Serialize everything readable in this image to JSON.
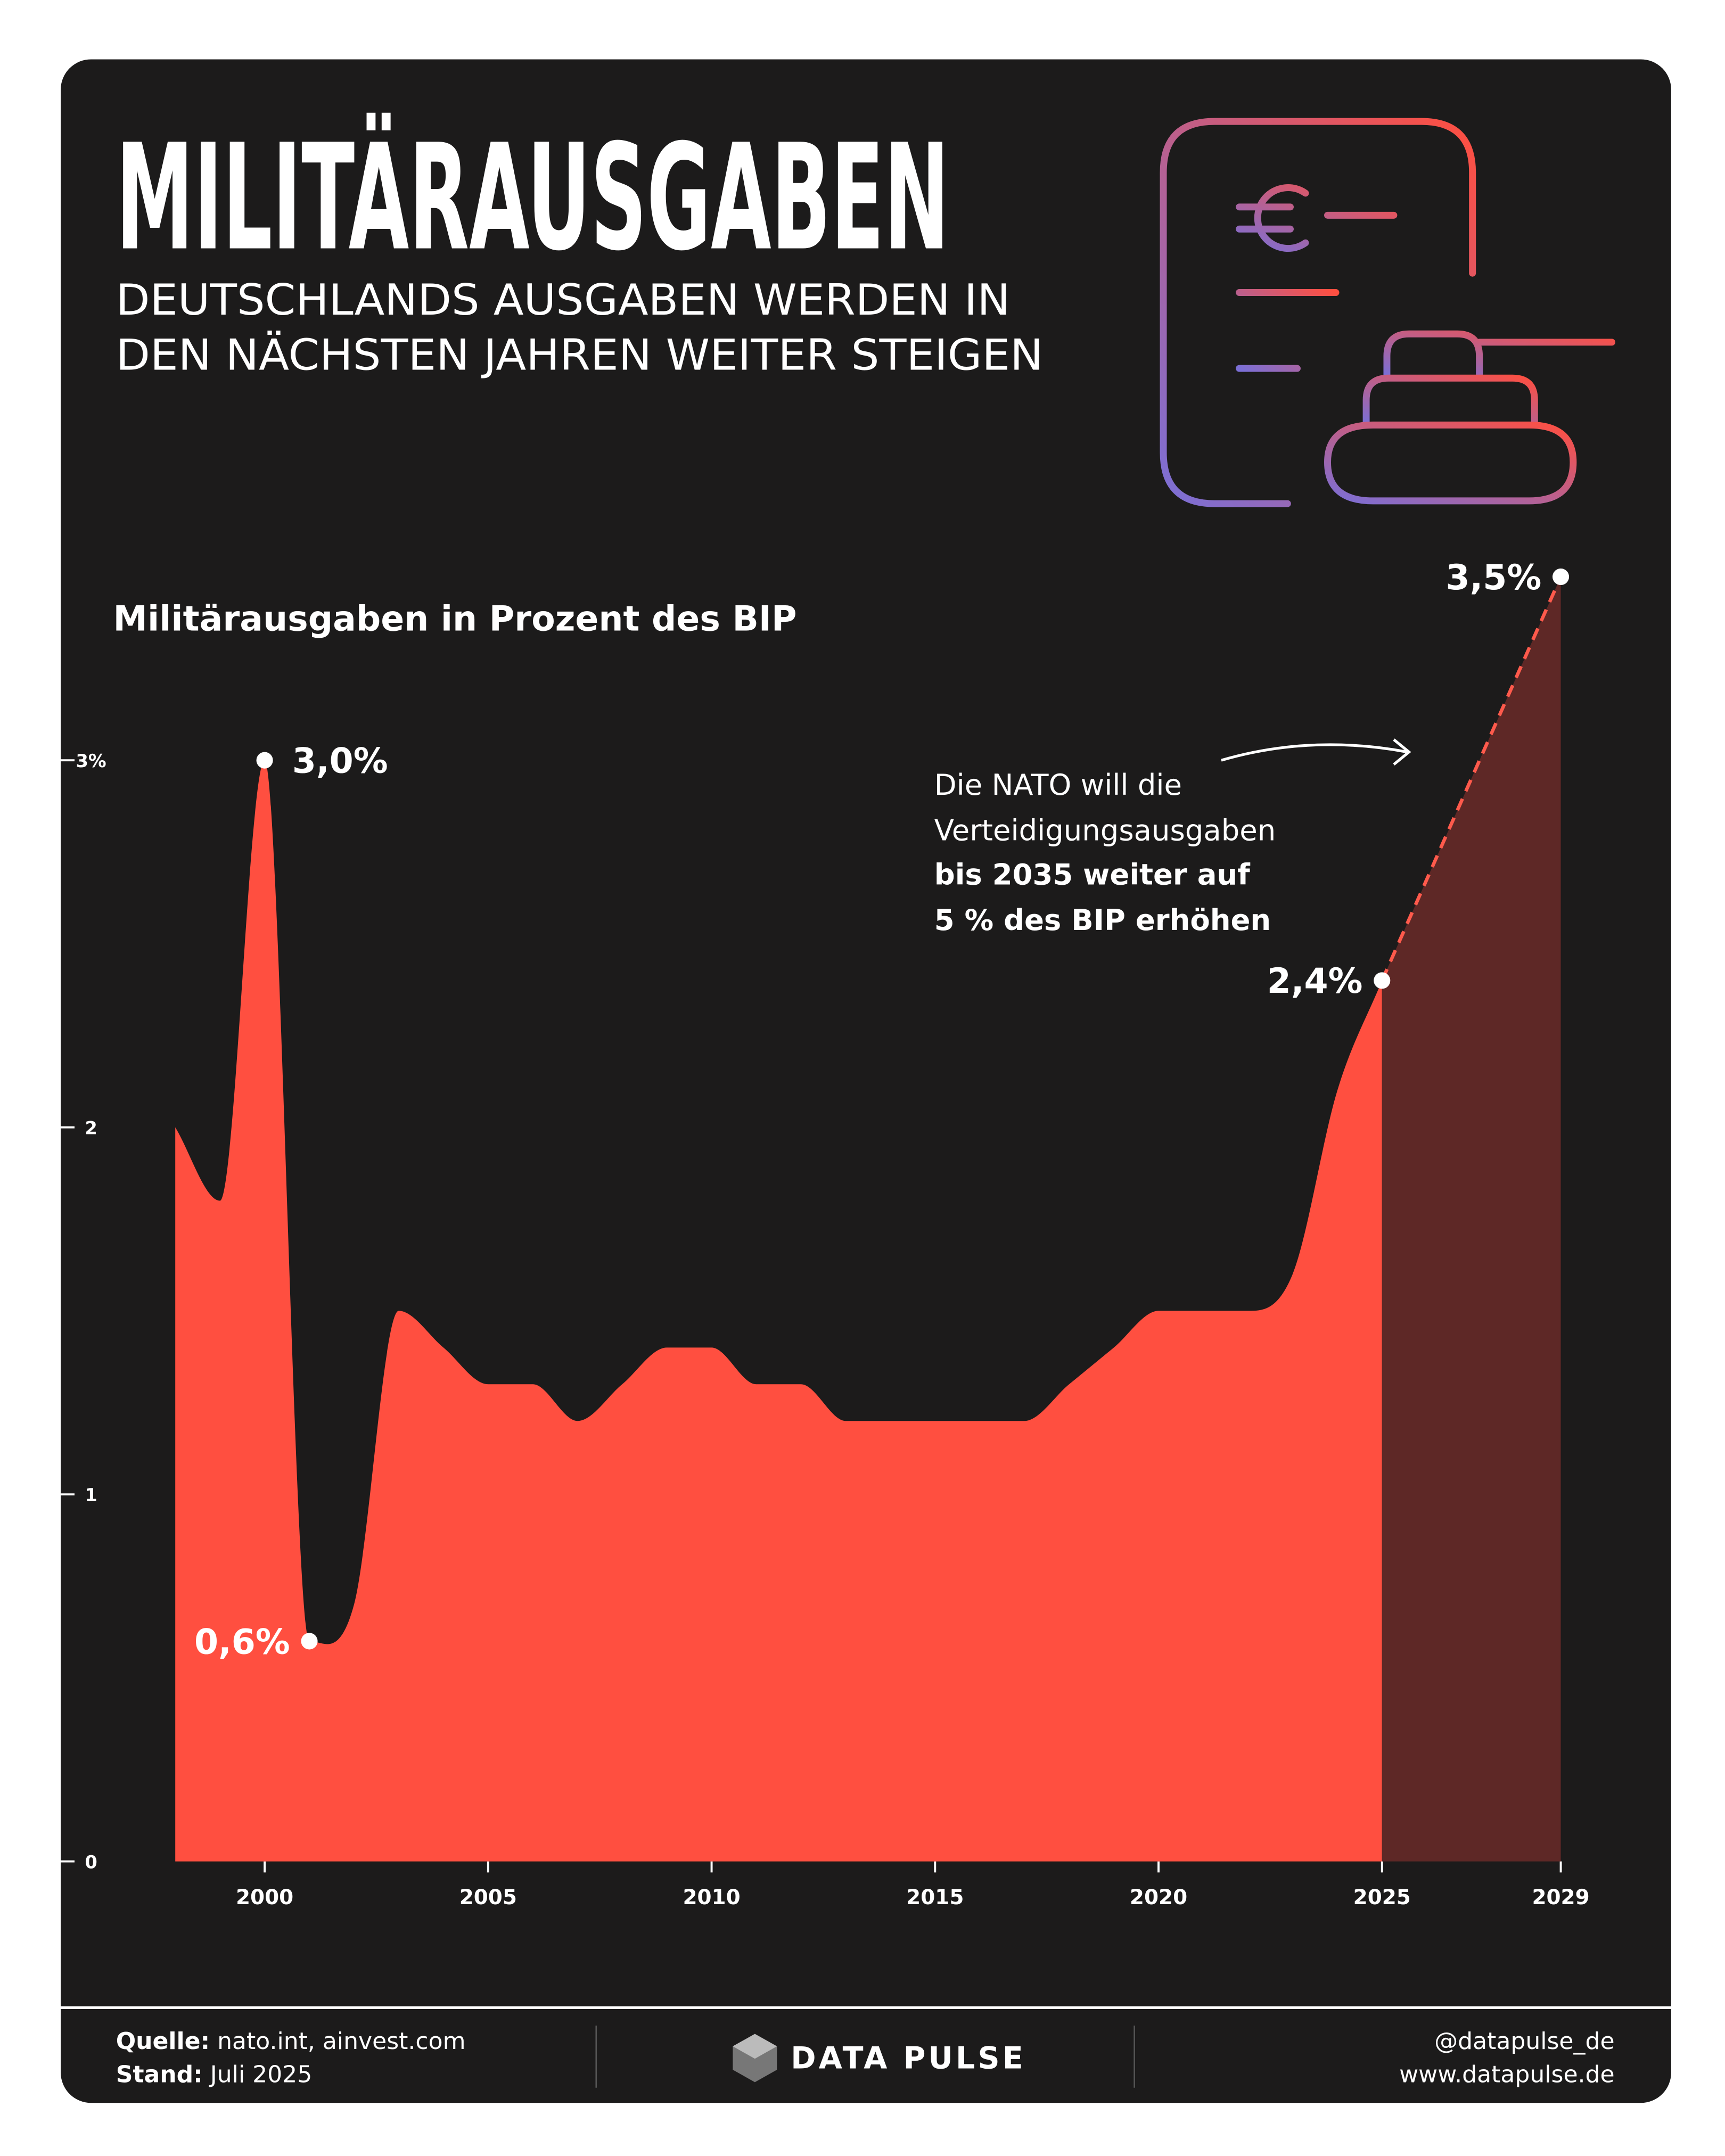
{
  "header": {
    "title": "MILITÄRAUSGABEN",
    "subtitle": [
      "DEUTSCHLANDS AUSGABEN WERDEN IN",
      "DEN NÄCHSTEN JAHREN WEITER STEIGEN"
    ]
  },
  "chart_data": {
    "type": "area",
    "title": "Militärausgaben in Prozent des BIP",
    "xlim": [
      1998,
      2029
    ],
    "ylim": [
      0,
      3.5
    ],
    "xticks": [
      2000,
      2005,
      2010,
      2015,
      2020,
      2025,
      2029
    ],
    "yticks": [
      0,
      1,
      2,
      {
        "value": 3,
        "label": "3%"
      }
    ],
    "series": [
      {
        "color": "#ff4f40",
        "x": [
          1998,
          1999,
          2000,
          2001,
          2002,
          2003,
          2004,
          2005,
          2006,
          2007,
          2008,
          2009,
          2010,
          2011,
          2012,
          2013,
          2014,
          2015,
          2016,
          2017,
          2018,
          2019,
          2020,
          2021,
          2022,
          2023,
          2024,
          2025
        ],
        "values": [
          2.0,
          1.8,
          3.0,
          0.6,
          0.7,
          1.5,
          1.4,
          1.3,
          1.3,
          1.2,
          1.3,
          1.4,
          1.4,
          1.3,
          1.3,
          1.2,
          1.2,
          1.2,
          1.2,
          1.2,
          1.3,
          1.4,
          1.5,
          1.5,
          1.5,
          1.6,
          2.1,
          2.4
        ],
        "value_labels": [
          null,
          null,
          "3,0%",
          "0,6%",
          null,
          null,
          null,
          null,
          null,
          null,
          null,
          null,
          null,
          null,
          null,
          null,
          null,
          null,
          null,
          null,
          null,
          null,
          null,
          null,
          null,
          null,
          null,
          "2,4%"
        ]
      },
      {
        "color": "#5e2826",
        "line_color": "#ff5a4c",
        "dashed": true,
        "x": [
          2025,
          2029
        ],
        "values": [
          2.4,
          3.5
        ],
        "value_labels": [
          null,
          "3,5%"
        ]
      }
    ],
    "annotation": {
      "normal": [
        "Die NATO will die",
        "Verteidigungsausgaben"
      ],
      "bold": [
        "bis 2035 weiter auf",
        "5 % des BIP erhöhen"
      ]
    }
  },
  "footer": {
    "source_label": "Quelle:",
    "source": "nato.int, ainvest.com",
    "date_label": "Stand:",
    "date": "Juli 2025",
    "brand": "DATA PULSE",
    "handle": "@datapulse_de",
    "website": "www.datapulse.de"
  }
}
